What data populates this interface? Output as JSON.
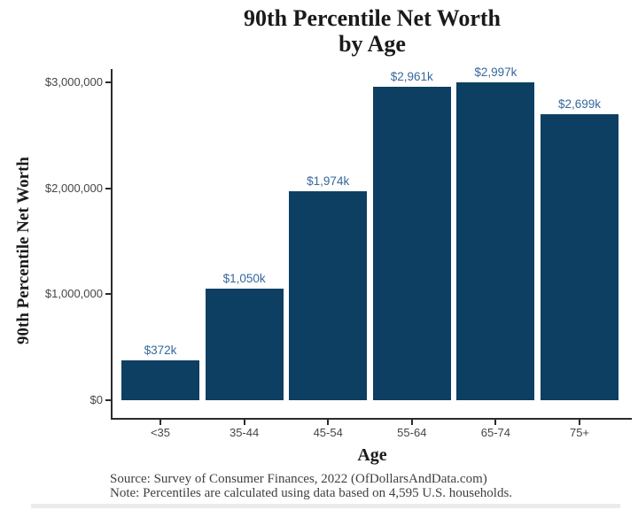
{
  "title": {
    "line1": "90th Percentile Net Worth",
    "line2": "by Age"
  },
  "chart_data": {
    "type": "bar",
    "title": "90th Percentile Net Worth by Age",
    "xlabel": "Age",
    "ylabel": "90th Percentile Net Worth",
    "categories": [
      "<35",
      "35-44",
      "45-54",
      "55-64",
      "65-74",
      "75+"
    ],
    "values": [
      372000,
      1050000,
      1974000,
      2961000,
      2997000,
      2699000
    ],
    "bar_labels": [
      "$372k",
      "$1,050k",
      "$1,974k",
      "$2,961k",
      "$2,997k",
      "$2,699k"
    ],
    "y_axis": {
      "ticks": [
        {
          "value": 0,
          "label": "$0"
        },
        {
          "value": 1000000,
          "label": "$1,000,000"
        },
        {
          "value": 2000000,
          "label": "$2,000,000"
        },
        {
          "value": 3000000,
          "label": "$3,000,000"
        }
      ]
    },
    "ylim": [
      0,
      3150000
    ],
    "grid": false,
    "legend": "none",
    "colors": {
      "bar_fill": "#0d3f63",
      "value_label": "#36689d",
      "axis_line": "#2b2b2b",
      "tick_text": "#454545"
    }
  },
  "footer": {
    "source_line": "Source:  Survey of Consumer Finances, 2022 (OfDollarsAndData.com)",
    "note_line": "Note: Percentiles are calculated using data based on 4,595 U.S. households."
  }
}
